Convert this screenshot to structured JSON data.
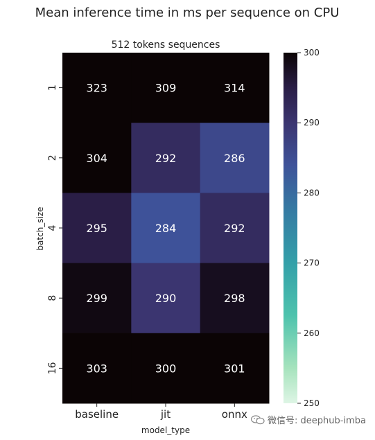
{
  "chart_data": {
    "type": "heatmap",
    "title": "Mean inference time in ms per sequence on CPU",
    "subtitle": "512 tokens sequences",
    "xlabel": "model_type",
    "ylabel": "batch_size",
    "x_categories": [
      "baseline",
      "jit",
      "onnx"
    ],
    "y_categories": [
      "1",
      "2",
      "4",
      "8",
      "16"
    ],
    "values": [
      [
        323,
        309,
        314
      ],
      [
        304,
        292,
        286
      ],
      [
        295,
        284,
        292
      ],
      [
        299,
        290,
        298
      ],
      [
        303,
        300,
        301
      ]
    ],
    "colorbar": {
      "vmin": 250,
      "vmax": 300,
      "ticks": [
        250,
        260,
        270,
        280,
        290,
        300
      ],
      "colormap": "mako_r"
    },
    "colors": {
      "cell_text": "#ffffff",
      "label_text": "#222222"
    }
  },
  "watermark": {
    "icon": "wechat-icon",
    "text": "微信号: deephub-imba"
  }
}
